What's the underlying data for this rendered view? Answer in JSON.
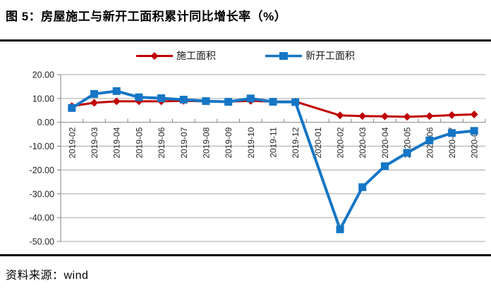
{
  "title": "图 5：房屋施工与新开工面积累计同比增长率（%）",
  "source": "资料来源：wind",
  "legend": [
    {
      "label": "施工面积",
      "color": "#C00000",
      "marker": "diamond"
    },
    {
      "label": "新开工面积",
      "color": "#1576C5",
      "marker": "square"
    }
  ],
  "colors": {
    "gridline": "#A6A6A6",
    "axis": "#808080",
    "axis_text": "#262626",
    "rule": "#000000"
  },
  "chart_data": {
    "type": "line",
    "title": "图 5：房屋施工与新开工面积累计同比增长率（%）",
    "xlabel": "",
    "ylabel": "",
    "grid": true,
    "legend_position": "top",
    "ylim": [
      -50,
      20
    ],
    "ytick_step": 10,
    "ytick_labels": [
      "20.00",
      "10.00",
      "0.00",
      "-10.00",
      "-20.00",
      "-30.00",
      "-40.00",
      "-50.00"
    ],
    "categories": [
      "2019-02",
      "2019-03",
      "2019-04",
      "2019-05",
      "2019-06",
      "2019-07",
      "2019-08",
      "2019-09",
      "2019-10",
      "2019-11",
      "2019-12",
      "2020-01",
      "2020-02",
      "2020-03",
      "2020-04",
      "2020-05",
      "2020-06",
      "2020-07",
      "2020-08"
    ],
    "series": [
      {
        "name": "施工面积",
        "color": "#C00000",
        "marker": "diamond",
        "values": [
          6.8,
          8.2,
          8.8,
          8.8,
          8.8,
          9.0,
          8.8,
          8.7,
          9.0,
          8.7,
          8.7,
          null,
          2.9,
          2.6,
          2.5,
          2.3,
          2.6,
          3.0,
          3.3
        ]
      },
      {
        "name": "新开工面积",
        "color": "#1576C5",
        "marker": "square",
        "values": [
          6.0,
          11.9,
          13.1,
          10.5,
          10.1,
          9.5,
          8.9,
          8.6,
          10.0,
          8.6,
          8.5,
          null,
          -44.9,
          -27.2,
          -18.4,
          -12.8,
          -7.6,
          -4.5,
          -3.6
        ]
      }
    ]
  }
}
